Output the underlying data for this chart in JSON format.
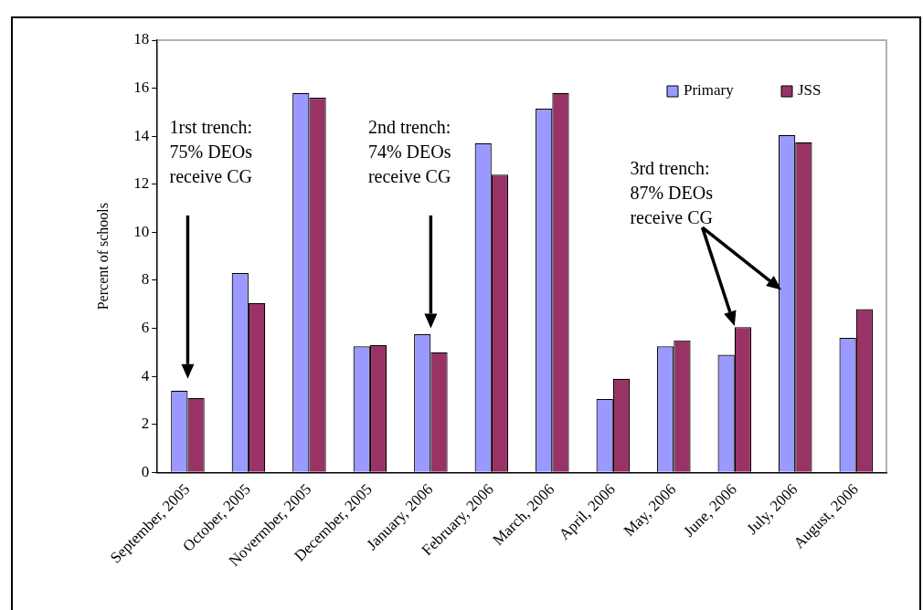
{
  "chart_data": {
    "type": "bar",
    "ylabel": "Percent of schools",
    "categories": [
      "September, 2005",
      "October, 2005",
      "Novermber, 2005",
      "December, 2005",
      "January, 2006",
      "February, 2006",
      "March, 2006",
      "April, 2006",
      "May, 2006",
      "June, 2006",
      "July, 2006",
      "August, 2006"
    ],
    "series": [
      {
        "name": "Primary",
        "color": "#9999ff",
        "values": [
          3.4,
          8.3,
          15.8,
          5.25,
          5.75,
          13.7,
          15.15,
          3.05,
          5.25,
          4.9,
          14.05,
          5.6
        ]
      },
      {
        "name": "JSS",
        "color": "#993366",
        "values": [
          3.1,
          7.05,
          15.6,
          5.3,
          5.0,
          12.4,
          15.8,
          3.9,
          5.5,
          6.05,
          13.75,
          6.8
        ]
      }
    ],
    "ylim": [
      0,
      18
    ],
    "yticks": [
      0,
      2,
      4,
      6,
      8,
      10,
      12,
      14,
      16,
      18
    ],
    "grid": false,
    "legend": "top right",
    "annotations": [
      "1rst trench:\n75% DEOs\nreceive CG",
      "2nd trench:\n74% DEOs\nreceive CG",
      "3rd trench:\n87% DEOs\nreceive CG"
    ]
  }
}
